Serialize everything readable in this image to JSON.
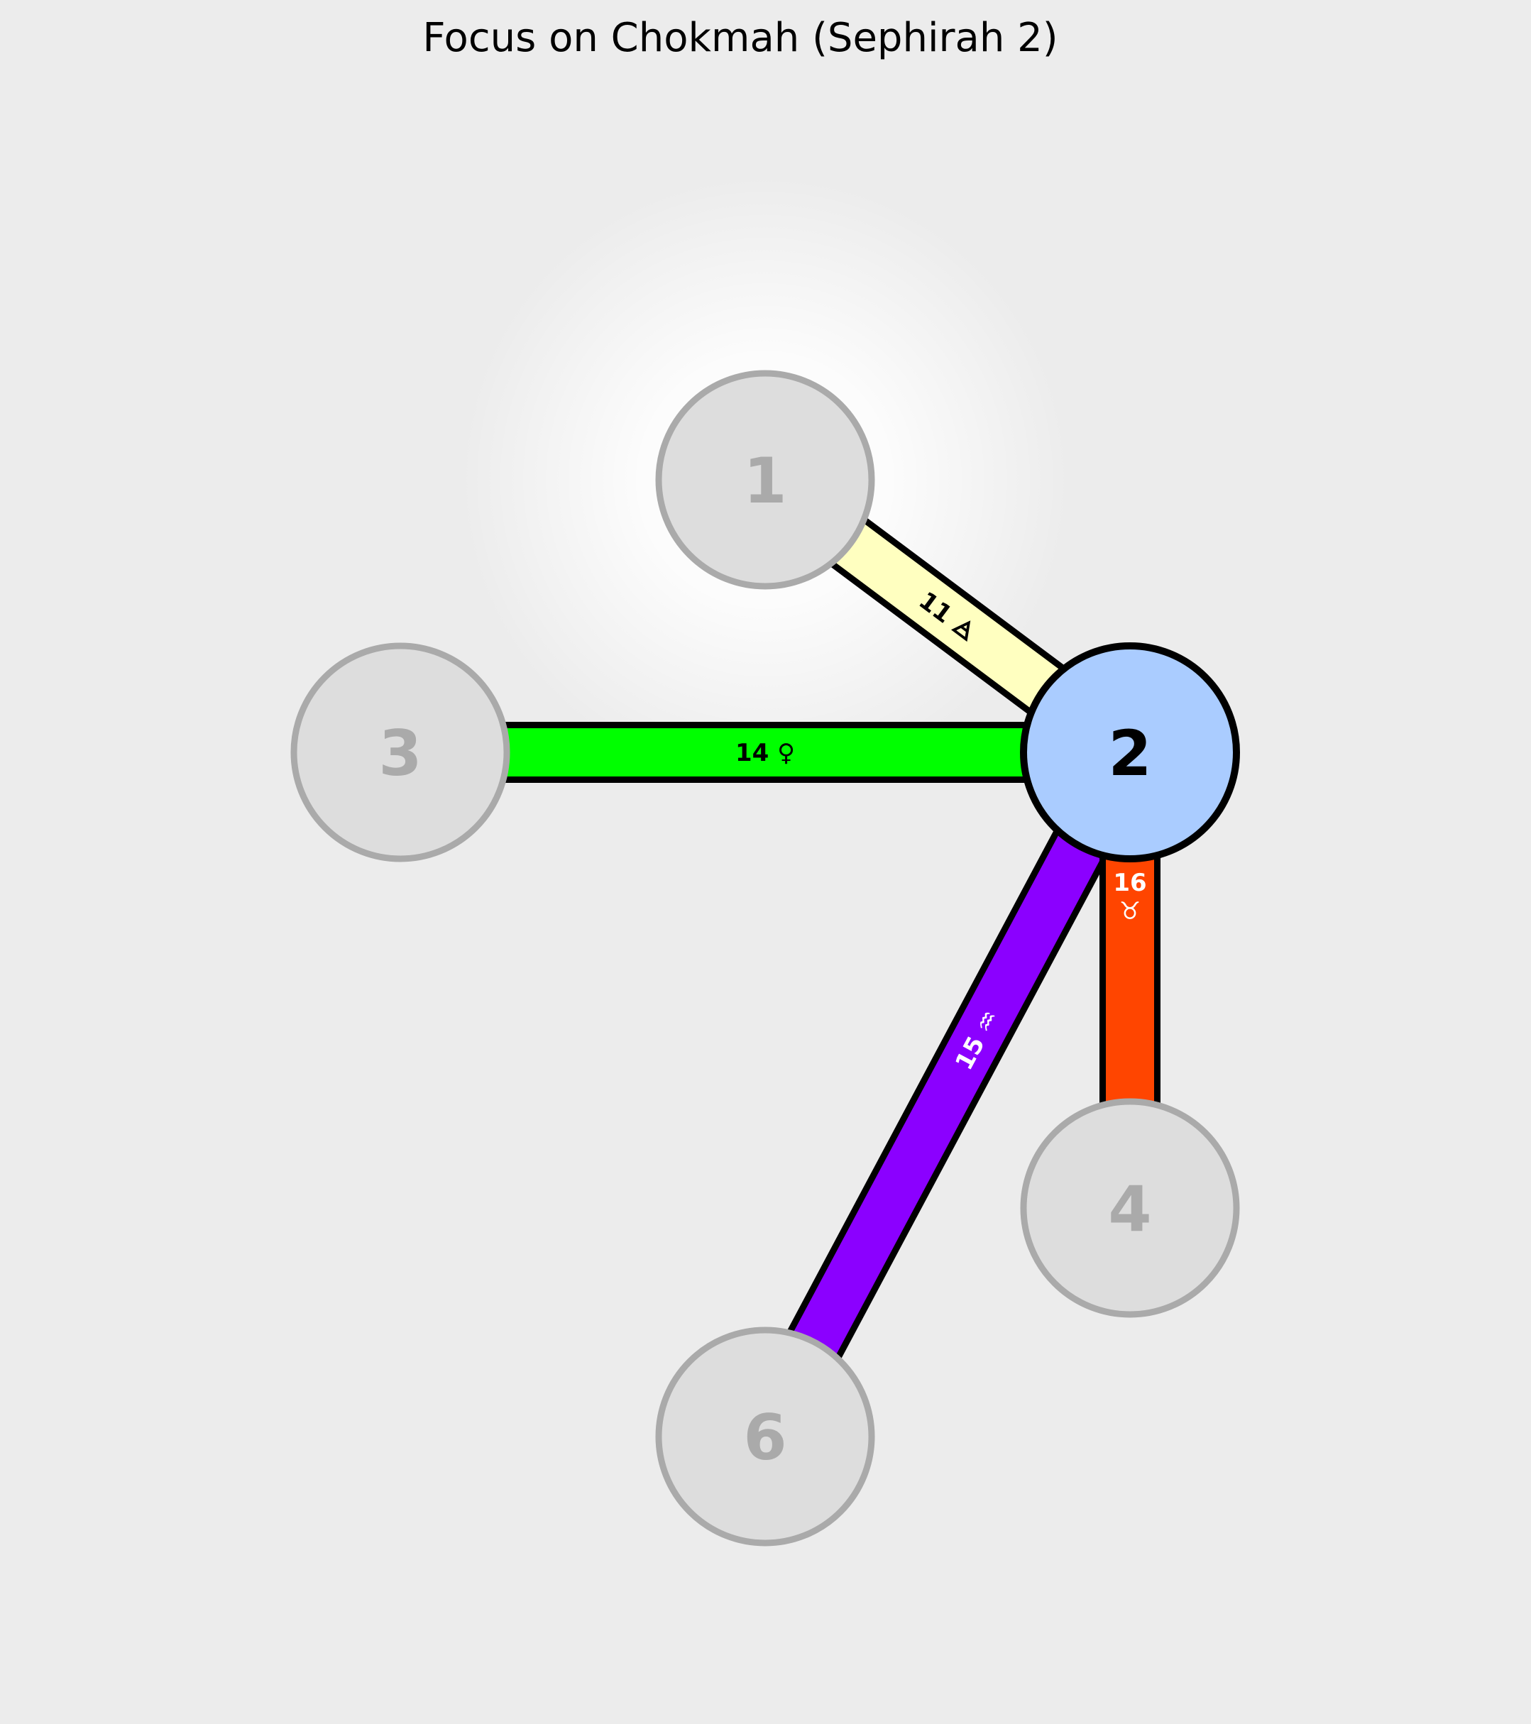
{
  "title": "Focus on Chokmah (Sephirah 2)",
  "colors": {
    "background": "#ececec",
    "focus_fill": "#aaccff",
    "focus_stroke": "#000000",
    "dim_fill": "#dddddd",
    "dim_stroke": "#aaaaaa",
    "dim_text": "#aaaaaa",
    "focus_text": "#000000",
    "glow": "#ffffff"
  },
  "focus_node": "2",
  "nodes": [
    {
      "id": "1",
      "label": "1",
      "glow": true
    },
    {
      "id": "2",
      "label": "2",
      "glow": false
    },
    {
      "id": "3",
      "label": "3",
      "glow": false
    },
    {
      "id": "4",
      "label": "4",
      "glow": false
    },
    {
      "id": "6",
      "label": "6",
      "glow": false
    }
  ],
  "paths": [
    {
      "id": "11",
      "from": "2",
      "to": "1",
      "number": "11",
      "symbol": "🜁",
      "label": "11 🜁",
      "color": "#ffffc0",
      "text_color": "#000000"
    },
    {
      "id": "14",
      "from": "2",
      "to": "3",
      "number": "14",
      "symbol": "♀",
      "label": "14 ♀",
      "color": "#00ff00",
      "text_color": "#000000"
    },
    {
      "id": "15",
      "from": "2",
      "to": "6",
      "number": "15",
      "symbol": "♒",
      "label": "15 ♒",
      "color": "#8b00ff",
      "text_color": "#ffffff"
    },
    {
      "id": "16",
      "from": "2",
      "to": "4",
      "number": "16",
      "symbol": "♉",
      "label": "16 ♉",
      "color": "#ff4500",
      "text_color": "#ffffff"
    }
  ]
}
